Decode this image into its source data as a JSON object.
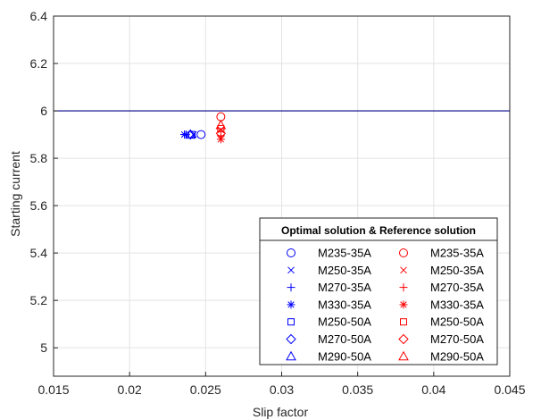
{
  "chart_data": {
    "type": "scatter",
    "xlabel": "Slip factor",
    "ylabel": "Starting current",
    "xlim": [
      0.015,
      0.045
    ],
    "ylim": [
      4.88,
      6.4
    ],
    "xticks": [
      {
        "v": 0.015,
        "label": "0.015"
      },
      {
        "v": 0.02,
        "label": "0.02"
      },
      {
        "v": 0.025,
        "label": "0.025"
      },
      {
        "v": 0.03,
        "label": "0.03"
      },
      {
        "v": 0.035,
        "label": "0.035"
      },
      {
        "v": 0.04,
        "label": "0.04"
      },
      {
        "v": 0.045,
        "label": "0.045"
      }
    ],
    "yticks": [
      {
        "v": 5.0,
        "label": "5"
      },
      {
        "v": 5.2,
        "label": "5.2"
      },
      {
        "v": 5.4,
        "label": "5.4"
      },
      {
        "v": 5.6,
        "label": "5.6"
      },
      {
        "v": 5.8,
        "label": "5.8"
      },
      {
        "v": 6.0,
        "label": "6"
      },
      {
        "v": 6.2,
        "label": "6.2"
      },
      {
        "v": 6.4,
        "label": "6.4"
      }
    ],
    "grid": true,
    "reference_line_y": 6.0,
    "legend": {
      "title": "Optimal solution & Reference solution",
      "placement": "bottom-right"
    },
    "colors": {
      "optimal": "#0000ff",
      "reference": "#ff0000",
      "line": "#00008b"
    },
    "groups": [
      {
        "key": "optimal",
        "series": [
          {
            "name": "M235-35A",
            "marker": "circle",
            "x": 0.0247,
            "y": 5.9
          },
          {
            "name": "M250-35A",
            "marker": "x",
            "x": 0.0242,
            "y": 5.9
          },
          {
            "name": "M270-35A",
            "marker": "plus",
            "x": 0.0237,
            "y": 5.9
          },
          {
            "name": "M330-35A",
            "marker": "asterisk",
            "x": 0.0236,
            "y": 5.9
          },
          {
            "name": "M250-50A",
            "marker": "square",
            "x": 0.0241,
            "y": 5.9
          },
          {
            "name": "M270-50A",
            "marker": "diamond",
            "x": 0.024,
            "y": 5.9
          },
          {
            "name": "M290-50A",
            "marker": "triangle",
            "x": 0.024,
            "y": 5.9
          }
        ]
      },
      {
        "key": "reference",
        "series": [
          {
            "name": "M235-35A",
            "marker": "circle",
            "x": 0.026,
            "y": 5.975
          },
          {
            "name": "M250-35A",
            "marker": "x",
            "x": 0.026,
            "y": 5.92
          },
          {
            "name": "M270-35A",
            "marker": "plus",
            "x": 0.026,
            "y": 5.895
          },
          {
            "name": "M330-35A",
            "marker": "asterisk",
            "x": 0.026,
            "y": 5.88
          },
          {
            "name": "M250-50A",
            "marker": "square",
            "x": 0.026,
            "y": 5.925
          },
          {
            "name": "M270-50A",
            "marker": "diamond",
            "x": 0.026,
            "y": 5.905
          },
          {
            "name": "M290-50A",
            "marker": "triangle",
            "x": 0.026,
            "y": 5.94
          }
        ]
      }
    ]
  }
}
